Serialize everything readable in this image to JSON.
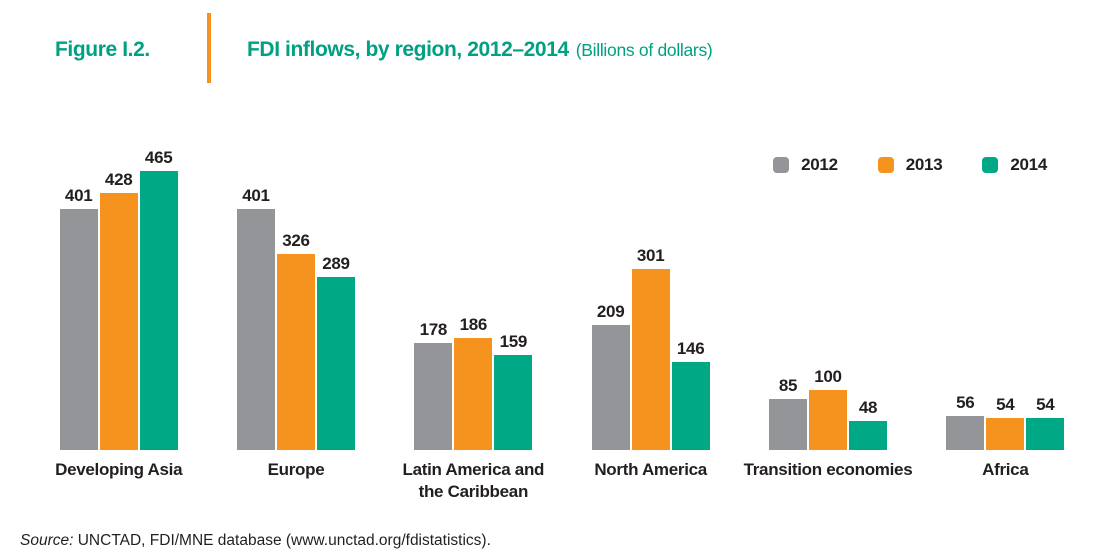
{
  "header": {
    "figure_label": "Figure I.2.",
    "title": "FDI inflows, by region, 2012–2014",
    "unit": "(Billions of dollars)"
  },
  "source": {
    "label": "Source:",
    "text": "UNCTAD, FDI/MNE database (www.unctad.org/fdistatistics)."
  },
  "colors": {
    "accent_teal": "#00A082",
    "accent_orange": "#F6921E",
    "text_dark": "#231F20",
    "bar_gray": "#939598",
    "bar_orange": "#F6921E",
    "bar_teal": "#00A886"
  },
  "chart_data": {
    "type": "bar",
    "title": "FDI inflows, by region, 2012–2014 (Billions of dollars)",
    "categories": [
      "Developing Asia",
      "Europe",
      "Latin America and\nthe Caribbean",
      "North America",
      "Transition economies",
      "Africa"
    ],
    "series": [
      {
        "name": "2012",
        "color": "#939598",
        "values": [
          401,
          401,
          178,
          209,
          85,
          56
        ]
      },
      {
        "name": "2013",
        "color": "#F6921E",
        "values": [
          428,
          326,
          186,
          301,
          100,
          54
        ]
      },
      {
        "name": "2014",
        "color": "#00A886",
        "values": [
          465,
          289,
          159,
          146,
          48,
          54
        ]
      }
    ],
    "value_labels": true,
    "legend_position": "top-right",
    "grid": false,
    "axes_hidden": true,
    "ylim": [
      0,
      465
    ]
  }
}
